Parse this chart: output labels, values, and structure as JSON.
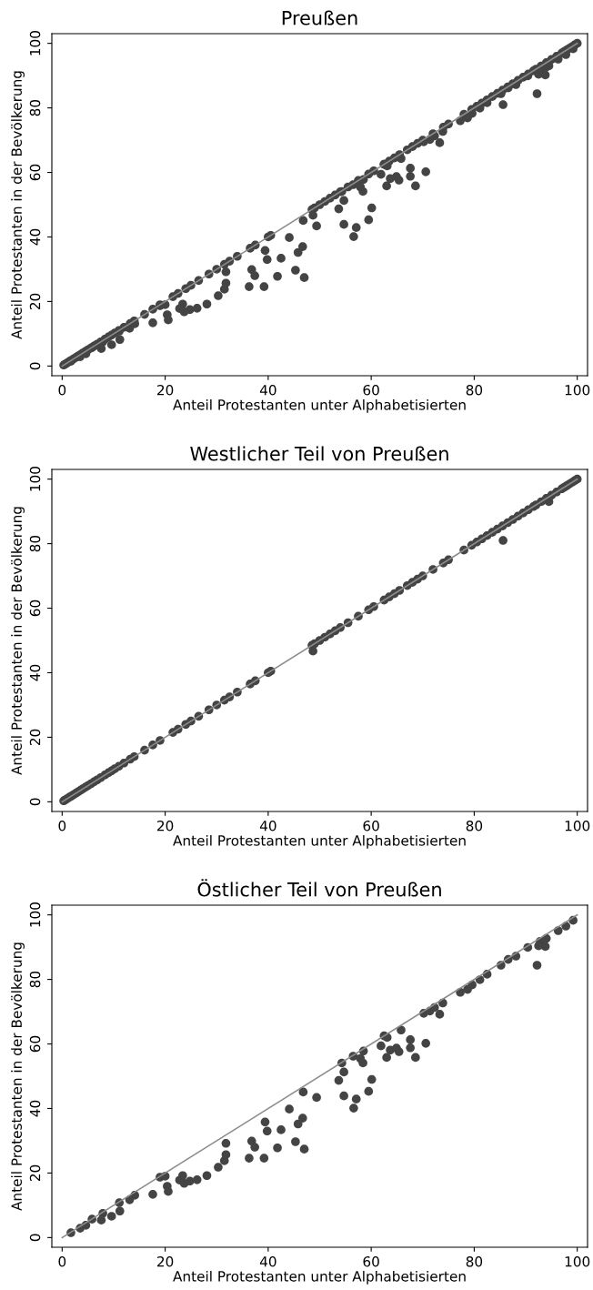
{
  "chart_data": [
    {
      "type": "scatter",
      "title": "Preußen",
      "xlabel": "Anteil Protestanten unter Alphabetisierten",
      "ylabel": "Anteil Protestanten in der Bevölkerung",
      "xlim": [
        -2,
        102
      ],
      "ylim": [
        -3,
        103
      ],
      "xticks": [
        0,
        20,
        40,
        60,
        80,
        100
      ],
      "yticks": [
        0,
        20,
        40,
        60,
        80,
        100
      ],
      "marker": "circle",
      "series": [
        {
          "color": "#444444",
          "x": [
            0.3,
            0.6,
            1,
            1.4,
            1.8,
            2.2,
            2.7,
            3.1,
            3.6,
            4,
            4.5,
            5,
            5.6,
            6.2,
            6.8,
            7.5,
            8.3,
            9,
            9.6,
            10.2,
            11,
            12,
            13.2,
            14,
            16,
            17.6,
            19,
            21.5,
            22.5,
            24,
            25,
            26.5,
            28.5,
            30,
            31.5,
            32.5,
            34,
            36.5,
            37.5,
            40,
            40.5,
            48.5,
            48.7,
            49,
            50,
            51,
            52,
            53,
            54,
            55.5,
            57.5,
            59.5,
            60.5,
            62.5,
            63.5,
            64.5,
            65.5,
            67,
            68,
            69,
            70,
            72,
            74,
            75,
            78,
            79.5,
            80.5,
            81.5,
            82.5,
            83.5,
            84.5,
            85.5,
            85.6,
            86.5,
            87.5,
            88.5,
            89.5,
            90.5,
            91.5,
            92,
            93,
            94,
            94.5,
            95,
            96,
            97,
            97.5,
            98,
            98.5,
            99,
            99.5,
            100
          ],
          "values": [
            0.3,
            0.6,
            1,
            1.4,
            1.8,
            2.2,
            2.7,
            3.1,
            3.6,
            4,
            4.5,
            5,
            5.6,
            6.2,
            6.8,
            7.5,
            8.3,
            9,
            9.6,
            10.2,
            11,
            12,
            13.2,
            14,
            16,
            17.6,
            19,
            21.5,
            22.5,
            24,
            25,
            26.5,
            28.5,
            30,
            31.5,
            32.5,
            34,
            36.5,
            37.5,
            40,
            40.5,
            48.5,
            46.7,
            49,
            50,
            51,
            52,
            53,
            54,
            55.5,
            57.5,
            59.5,
            60.5,
            62.5,
            63.5,
            64.5,
            65.5,
            67,
            68,
            69,
            70,
            72,
            74,
            75,
            78,
            79.5,
            80.5,
            81.5,
            82.5,
            83.5,
            84.5,
            85.5,
            81,
            86.5,
            87.5,
            88.5,
            89.5,
            90.5,
            91.5,
            92,
            93,
            94,
            93,
            95,
            96,
            97,
            97.5,
            98,
            98.5,
            99,
            99.5,
            100
          ]
        },
        {
          "color": "#444444",
          "x": [
            46.8,
            49.4,
            44.1,
            39.4,
            46.7,
            45.8,
            39.8,
            42.5,
            31.8,
            36.8,
            37.4,
            41.8,
            45.3,
            47.0,
            36.3,
            39.2,
            31.8,
            31.5,
            30.3,
            28.1,
            26.2,
            24.8,
            23.7,
            22.8,
            23.4,
            20.4,
            20.6,
            17.6,
            19.0,
            20.0,
            14.1,
            13.1,
            11.1,
            11.2,
            9.6,
            7.9,
            7.6,
            5.8,
            4.6,
            3.5,
            1.7,
            54.7,
            56.6,
            57.1,
            53.7,
            54.7,
            54.3,
            59.5,
            60.1,
            56.5,
            58.5,
            57.9,
            58.4,
            61.9,
            62.5,
            63.1,
            63.0,
            63.7,
            64.9,
            65.4,
            65.8,
            67.6,
            67.6,
            68.6,
            70.6,
            70.2,
            71.4,
            72.3,
            73.9,
            73.3,
            77.3,
            78.7,
            79.6,
            81.1,
            82.5,
            85.2,
            86.6,
            88.1,
            90.4,
            92.2,
            92.8,
            94.0,
            93.8,
            92.5,
            96.3,
            97.8,
            99.2
          ],
          "values": [
            45.1,
            43.4,
            39.8,
            35.8,
            37.0,
            35.2,
            33.0,
            33.4,
            29.2,
            29.9,
            28.0,
            27.8,
            29.7,
            27.4,
            24.6,
            24.6,
            25.7,
            23.8,
            21.8,
            19.2,
            17.9,
            17.5,
            16.8,
            17.8,
            19.2,
            15.9,
            14.3,
            13.4,
            18.7,
            19.0,
            13.1,
            11.7,
            10.8,
            8.2,
            6.6,
            7.5,
            5.4,
            5.7,
            3.8,
            2.9,
            1.5,
            43.9,
            40.1,
            42.9,
            48.7,
            51.3,
            54.1,
            45.3,
            49.0,
            56.2,
            57.8,
            55.5,
            54.1,
            59.4,
            62.5,
            62.0,
            55.8,
            58.1,
            58.7,
            57.6,
            64.3,
            61.3,
            58.8,
            55.8,
            60.2,
            69.5,
            70.2,
            71.3,
            72.7,
            69.2,
            76.0,
            76.9,
            78.3,
            79.9,
            81.6,
            84.4,
            86.2,
            87.2,
            89.9,
            84.4,
            91.8,
            92.7,
            90.2,
            90.4,
            95.1,
            96.5,
            98.3
          ]
        },
        {
          "type": "line",
          "marker": "none",
          "color": "#8c8c8c",
          "x": [
            0,
            100
          ],
          "values": [
            0,
            100
          ]
        }
      ]
    },
    {
      "type": "scatter",
      "title": "Westlicher Teil von Preußen",
      "xlabel": "Anteil Protestanten unter Alphabetisierten",
      "ylabel": "Anteil Protestanten in der Bevölkerung",
      "xlim": [
        -2,
        102
      ],
      "ylim": [
        -3,
        103
      ],
      "xticks": [
        0,
        20,
        40,
        60,
        80,
        100
      ],
      "yticks": [
        0,
        20,
        40,
        60,
        80,
        100
      ],
      "marker": "circle",
      "series": [
        {
          "color": "#444444",
          "x": [
            0.3,
            0.6,
            1,
            1.4,
            1.8,
            2.2,
            2.7,
            3.1,
            3.6,
            4,
            4.5,
            5,
            5.6,
            6.2,
            6.8,
            7.5,
            8.3,
            9,
            9.6,
            10.2,
            11,
            12,
            13.2,
            14,
            16,
            17.6,
            19,
            21.5,
            22.5,
            24,
            25,
            26.5,
            28.5,
            30,
            31.5,
            32.5,
            34,
            36.5,
            37.5,
            40,
            40.5,
            48.5,
            48.7,
            49,
            50,
            51,
            52,
            53,
            54,
            55.5,
            57.5,
            59.5,
            60.5,
            62.5,
            63.5,
            64.5,
            65.5,
            67,
            68,
            69,
            70,
            72,
            74,
            75,
            78,
            79.5,
            80.5,
            81.5,
            82.5,
            83.5,
            84.5,
            85.5,
            85.6,
            86.5,
            87.5,
            88.5,
            89.5,
            90.5,
            91.5,
            92,
            93,
            94,
            94.5,
            95,
            96,
            97,
            97.5,
            98,
            98.5,
            99,
            99.5,
            100
          ],
          "values": [
            0.3,
            0.6,
            1,
            1.4,
            1.8,
            2.2,
            2.7,
            3.1,
            3.6,
            4,
            4.5,
            5,
            5.6,
            6.2,
            6.8,
            7.5,
            8.3,
            9,
            9.6,
            10.2,
            11,
            12,
            13.2,
            14,
            16,
            17.6,
            19,
            21.5,
            22.5,
            24,
            25,
            26.5,
            28.5,
            30,
            31.5,
            32.5,
            34,
            36.5,
            37.5,
            40,
            40.5,
            48.5,
            46.7,
            49,
            50,
            51,
            52,
            53,
            54,
            55.5,
            57.5,
            59.5,
            60.5,
            62.5,
            63.5,
            64.5,
            65.5,
            67,
            68,
            69,
            70,
            72,
            74,
            75,
            78,
            79.5,
            80.5,
            81.5,
            82.5,
            83.5,
            84.5,
            85.5,
            81,
            86.5,
            87.5,
            88.5,
            89.5,
            90.5,
            91.5,
            92,
            93,
            94,
            93,
            95,
            96,
            97,
            97.5,
            98,
            98.5,
            99,
            99.5,
            100
          ]
        },
        {
          "type": "line",
          "marker": "none",
          "color": "#8c8c8c",
          "x": [
            0,
            100
          ],
          "values": [
            0,
            100
          ]
        }
      ]
    },
    {
      "type": "scatter",
      "title": "Östlicher Teil von Preußen",
      "xlabel": "Anteil Protestanten unter Alphabetisierten",
      "ylabel": "Anteil Protestanten in der Bevölkerung",
      "xlim": [
        -2,
        102
      ],
      "ylim": [
        -3,
        103
      ],
      "xticks": [
        0,
        20,
        40,
        60,
        80,
        100
      ],
      "yticks": [
        0,
        20,
        40,
        60,
        80,
        100
      ],
      "marker": "circle",
      "series": [
        {
          "color": "#444444",
          "x": [
            46.8,
            49.4,
            44.1,
            39.4,
            46.7,
            45.8,
            39.8,
            42.5,
            31.8,
            36.8,
            37.4,
            41.8,
            45.3,
            47.0,
            36.3,
            39.2,
            31.8,
            31.5,
            30.3,
            28.1,
            26.2,
            24.8,
            23.7,
            22.8,
            23.4,
            20.4,
            20.6,
            17.6,
            19.0,
            20.0,
            14.1,
            13.1,
            11.1,
            11.2,
            9.6,
            7.9,
            7.6,
            5.8,
            4.6,
            3.5,
            1.7,
            54.7,
            56.6,
            57.1,
            53.7,
            54.7,
            54.3,
            59.5,
            60.1,
            56.5,
            58.5,
            57.9,
            58.4,
            61.9,
            62.5,
            63.1,
            63.0,
            63.7,
            64.9,
            65.4,
            65.8,
            67.6,
            67.6,
            68.6,
            70.6,
            70.2,
            71.4,
            72.3,
            73.9,
            73.3,
            77.3,
            78.7,
            79.6,
            81.1,
            82.5,
            85.2,
            86.6,
            88.1,
            90.4,
            92.2,
            92.8,
            94.0,
            93.8,
            92.5,
            96.3,
            97.8,
            99.2
          ],
          "values": [
            45.1,
            43.4,
            39.8,
            35.8,
            37.0,
            35.2,
            33.0,
            33.4,
            29.2,
            29.9,
            28.0,
            27.8,
            29.7,
            27.4,
            24.6,
            24.6,
            25.7,
            23.8,
            21.8,
            19.2,
            17.9,
            17.5,
            16.8,
            17.8,
            19.2,
            15.9,
            14.3,
            13.4,
            18.7,
            19.0,
            13.1,
            11.7,
            10.8,
            8.2,
            6.6,
            7.5,
            5.4,
            5.7,
            3.8,
            2.9,
            1.5,
            43.9,
            40.1,
            42.9,
            48.7,
            51.3,
            54.1,
            45.3,
            49.0,
            56.2,
            57.8,
            55.5,
            54.1,
            59.4,
            62.5,
            62.0,
            55.8,
            58.1,
            58.7,
            57.6,
            64.3,
            61.3,
            58.8,
            55.8,
            60.2,
            69.5,
            70.2,
            71.3,
            72.7,
            69.2,
            76.0,
            76.9,
            78.3,
            79.9,
            81.6,
            84.4,
            86.2,
            87.2,
            89.9,
            84.4,
            91.8,
            92.7,
            90.2,
            90.4,
            95.1,
            96.5,
            98.3
          ]
        },
        {
          "type": "line",
          "marker": "none",
          "color": "#8c8c8c",
          "x": [
            0,
            100
          ],
          "values": [
            0,
            100
          ]
        }
      ]
    }
  ]
}
